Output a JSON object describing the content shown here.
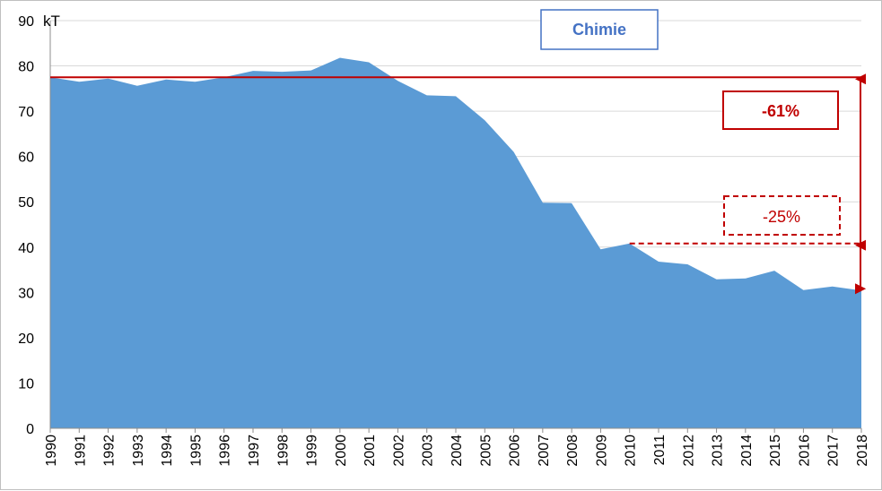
{
  "chart_data": {
    "type": "area",
    "title": "Chimie",
    "ylabel": "kT",
    "xlabel": "",
    "ylim": [
      0,
      90
    ],
    "yticks": [
      0,
      10,
      20,
      30,
      40,
      50,
      60,
      70,
      80,
      90
    ],
    "grid": true,
    "legend": "none",
    "area_color": "#5b9bd5",
    "annotation_color": "#c00000",
    "x": [
      "1990",
      "1991",
      "1992",
      "1993",
      "1994",
      "1995",
      "1996",
      "1997",
      "1998",
      "1999",
      "2000",
      "2001",
      "2002",
      "2003",
      "2004",
      "2005",
      "2006",
      "2007",
      "2008",
      "2009",
      "2010",
      "2011",
      "2012",
      "2013",
      "2014",
      "2015",
      "2016",
      "2017",
      "2018"
    ],
    "series": [
      {
        "values": [
          77.5,
          76.5,
          77.2,
          75.6,
          77.0,
          76.5,
          77.5,
          78.9,
          78.7,
          79.0,
          81.8,
          80.8,
          76.7,
          73.5,
          73.3,
          68.0,
          61.0,
          49.8,
          49.7,
          39.5,
          40.8,
          36.8,
          36.2,
          32.9,
          33.1,
          34.8,
          30.5,
          31.3,
          30.4
        ]
      }
    ],
    "reference_lines": [
      {
        "style": "solid",
        "y": 77.5
      },
      {
        "style": "dashed",
        "y": 40.8
      }
    ],
    "annotations": [
      {
        "text": "-61%",
        "style": "solid"
      },
      {
        "text": "-25%",
        "style": "dashed"
      }
    ]
  }
}
